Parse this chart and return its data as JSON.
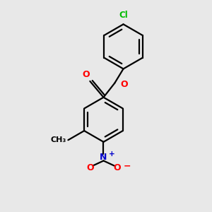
{
  "background_color": "#e8e8e8",
  "bond_color": "#000000",
  "bond_width": 1.6,
  "cl_color": "#00bb00",
  "o_color": "#ff0000",
  "n_color": "#0000cc",
  "text_color": "#000000",
  "figsize": [
    3.0,
    3.0
  ],
  "dpi": 100,
  "xlim": [
    -3.5,
    3.5
  ],
  "ylim": [
    -4.2,
    4.2
  ]
}
